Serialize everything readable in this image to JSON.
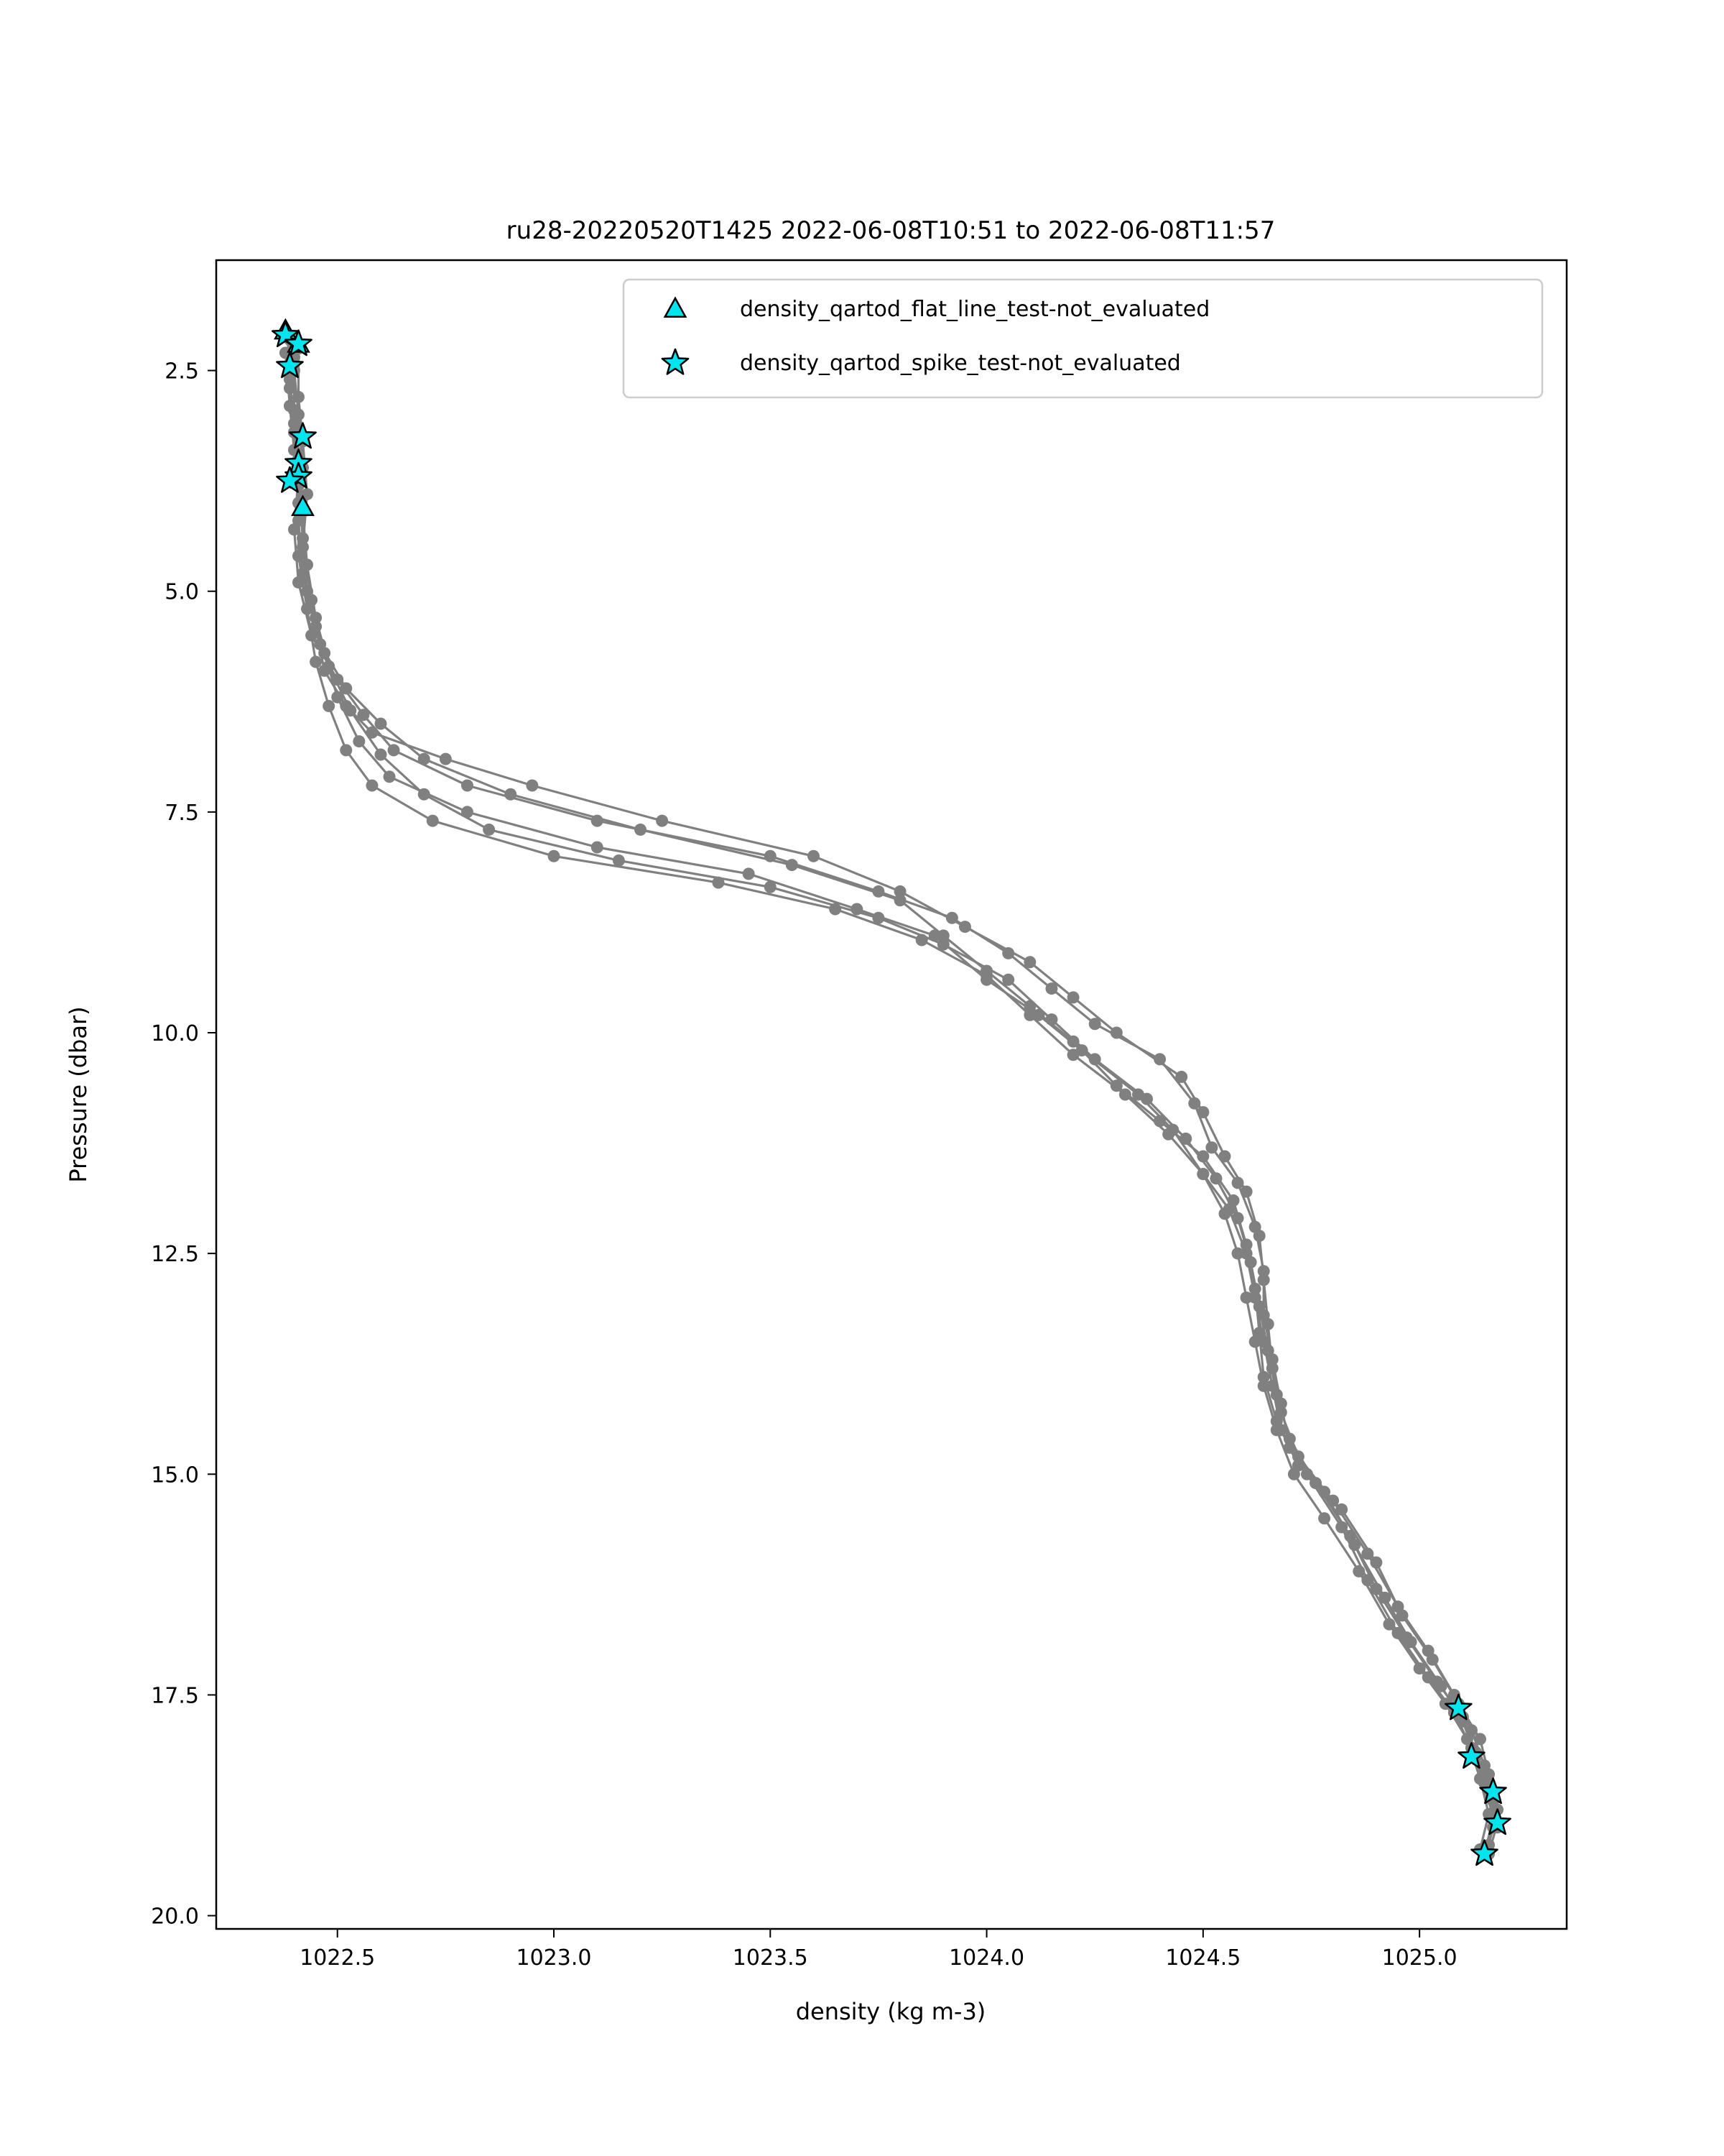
{
  "chart_data": {
    "type": "scatter",
    "title": "ru28-20220520T1425 2022-06-08T10:51 to 2022-06-08T11:57",
    "xlabel": "density (kg m-3)",
    "ylabel": "Pressure (dbar)",
    "xlim": [
      1022.22,
      1025.34
    ],
    "ylim": [
      20.15,
      1.25
    ],
    "y_inverted": true,
    "xticks": [
      1022.5,
      1023.0,
      1023.5,
      1024.0,
      1024.5,
      1025.0
    ],
    "xtick_labels": [
      "1022.5",
      "1023.0",
      "1023.5",
      "1024.0",
      "1024.5",
      "1025.0"
    ],
    "yticks": [
      2.5,
      5.0,
      7.5,
      10.0,
      12.5,
      15.0,
      17.5,
      20.0
    ],
    "ytick_labels": [
      "2.5",
      "5.0",
      "7.5",
      "10.0",
      "12.5",
      "15.0",
      "17.5",
      "20.0"
    ],
    "grid": false,
    "legend_position": "top-right",
    "colors": {
      "profile": "#808080",
      "marker_fill": "#00e5ee",
      "marker_edge": "#000000"
    },
    "profiles": [
      {
        "points": [
          [
            1022.38,
            2.1
          ],
          [
            1022.4,
            2.5
          ],
          [
            1022.41,
            3.0
          ],
          [
            1022.42,
            3.6
          ],
          [
            1022.41,
            4.2
          ],
          [
            1022.42,
            4.8
          ],
          [
            1022.45,
            5.4
          ],
          [
            1022.47,
            5.9
          ],
          [
            1022.52,
            6.3
          ],
          [
            1022.58,
            6.6
          ],
          [
            1022.75,
            6.9
          ],
          [
            1022.95,
            7.2
          ],
          [
            1023.25,
            7.6
          ],
          [
            1023.6,
            8.0
          ],
          [
            1023.8,
            8.4
          ],
          [
            1023.95,
            8.8
          ],
          [
            1024.1,
            9.2
          ],
          [
            1024.2,
            9.6
          ],
          [
            1024.3,
            10.0
          ],
          [
            1024.45,
            10.5
          ],
          [
            1024.5,
            10.9
          ],
          [
            1024.55,
            11.4
          ],
          [
            1024.6,
            11.8
          ],
          [
            1024.63,
            12.3
          ],
          [
            1024.64,
            12.8
          ],
          [
            1024.65,
            13.3
          ],
          [
            1024.66,
            13.8
          ],
          [
            1024.68,
            14.3
          ],
          [
            1024.72,
            14.8
          ],
          [
            1024.8,
            15.3
          ],
          [
            1024.88,
            15.9
          ],
          [
            1024.95,
            16.5
          ],
          [
            1025.02,
            17.0
          ],
          [
            1025.08,
            17.5
          ],
          [
            1025.12,
            17.9
          ],
          [
            1025.15,
            18.3
          ],
          [
            1025.17,
            18.7
          ],
          [
            1025.18,
            19.0
          ]
        ]
      },
      {
        "points": [
          [
            1022.39,
            2.15
          ],
          [
            1022.39,
            2.6
          ],
          [
            1022.4,
            3.1
          ],
          [
            1022.41,
            3.7
          ],
          [
            1022.4,
            4.3
          ],
          [
            1022.41,
            4.9
          ],
          [
            1022.44,
            5.5
          ],
          [
            1022.5,
            6.0
          ],
          [
            1022.56,
            6.4
          ],
          [
            1022.63,
            6.8
          ],
          [
            1022.8,
            7.2
          ],
          [
            1023.1,
            7.6
          ],
          [
            1023.5,
            8.0
          ],
          [
            1023.75,
            8.4
          ],
          [
            1023.92,
            8.7
          ],
          [
            1024.05,
            9.1
          ],
          [
            1024.15,
            9.5
          ],
          [
            1024.25,
            9.9
          ],
          [
            1024.4,
            10.3
          ],
          [
            1024.48,
            10.8
          ],
          [
            1024.52,
            11.3
          ],
          [
            1024.58,
            11.7
          ],
          [
            1024.62,
            12.2
          ],
          [
            1024.64,
            12.7
          ],
          [
            1024.64,
            13.2
          ],
          [
            1024.66,
            13.7
          ],
          [
            1024.68,
            14.2
          ],
          [
            1024.7,
            14.7
          ],
          [
            1024.78,
            15.2
          ],
          [
            1024.85,
            15.8
          ],
          [
            1024.92,
            16.4
          ],
          [
            1024.98,
            16.9
          ],
          [
            1025.05,
            17.4
          ],
          [
            1025.1,
            17.8
          ],
          [
            1025.13,
            18.2
          ],
          [
            1025.16,
            18.6
          ],
          [
            1025.17,
            19.0
          ]
        ]
      },
      {
        "points": [
          [
            1022.4,
            2.2
          ],
          [
            1022.39,
            2.7
          ],
          [
            1022.4,
            3.2
          ],
          [
            1022.41,
            3.8
          ],
          [
            1022.42,
            4.4
          ],
          [
            1022.43,
            5.0
          ],
          [
            1022.46,
            5.6
          ],
          [
            1022.52,
            6.1
          ],
          [
            1022.6,
            6.5
          ],
          [
            1022.7,
            6.9
          ],
          [
            1022.9,
            7.3
          ],
          [
            1023.2,
            7.7
          ],
          [
            1023.55,
            8.1
          ],
          [
            1023.8,
            8.5
          ],
          [
            1023.9,
            8.9
          ],
          [
            1024.0,
            9.3
          ],
          [
            1024.1,
            9.7
          ],
          [
            1024.2,
            10.1
          ],
          [
            1024.3,
            10.6
          ],
          [
            1024.4,
            11.0
          ],
          [
            1024.5,
            11.4
          ],
          [
            1024.57,
            11.9
          ],
          [
            1024.6,
            12.4
          ],
          [
            1024.62,
            12.9
          ],
          [
            1024.63,
            13.4
          ],
          [
            1024.64,
            13.9
          ],
          [
            1024.67,
            14.4
          ],
          [
            1024.72,
            14.9
          ],
          [
            1024.82,
            15.4
          ],
          [
            1024.9,
            16.0
          ],
          [
            1024.96,
            16.6
          ],
          [
            1025.03,
            17.1
          ],
          [
            1025.09,
            17.6
          ],
          [
            1025.14,
            18.0
          ],
          [
            1025.16,
            18.4
          ],
          [
            1025.18,
            18.8
          ],
          [
            1025.16,
            19.2
          ]
        ]
      },
      {
        "points": [
          [
            1022.41,
            2.25
          ],
          [
            1022.41,
            2.8
          ],
          [
            1022.42,
            3.3
          ],
          [
            1022.43,
            3.9
          ],
          [
            1022.42,
            4.5
          ],
          [
            1022.44,
            5.1
          ],
          [
            1022.47,
            5.7
          ],
          [
            1022.5,
            6.2
          ],
          [
            1022.55,
            6.7
          ],
          [
            1022.62,
            7.1
          ],
          [
            1022.8,
            7.5
          ],
          [
            1023.1,
            7.9
          ],
          [
            1023.45,
            8.2
          ],
          [
            1023.7,
            8.6
          ],
          [
            1023.88,
            8.9
          ],
          [
            1024.0,
            9.4
          ],
          [
            1024.12,
            9.8
          ],
          [
            1024.22,
            10.2
          ],
          [
            1024.35,
            10.7
          ],
          [
            1024.43,
            11.1
          ],
          [
            1024.5,
            11.6
          ],
          [
            1024.56,
            12.0
          ],
          [
            1024.6,
            12.5
          ],
          [
            1024.62,
            13.0
          ],
          [
            1024.64,
            13.5
          ],
          [
            1024.66,
            14.0
          ],
          [
            1024.68,
            14.5
          ],
          [
            1024.74,
            15.0
          ],
          [
            1024.82,
            15.6
          ],
          [
            1024.88,
            16.2
          ],
          [
            1024.95,
            16.8
          ],
          [
            1025.02,
            17.3
          ],
          [
            1025.08,
            17.7
          ],
          [
            1025.12,
            18.1
          ],
          [
            1025.15,
            18.5
          ],
          [
            1025.17,
            18.9
          ],
          [
            1025.15,
            19.3
          ]
        ]
      },
      {
        "points": [
          [
            1022.38,
            2.3
          ],
          [
            1022.39,
            2.9
          ],
          [
            1022.4,
            3.4
          ],
          [
            1022.41,
            4.0
          ],
          [
            1022.41,
            4.6
          ],
          [
            1022.43,
            5.2
          ],
          [
            1022.45,
            5.8
          ],
          [
            1022.48,
            6.3
          ],
          [
            1022.52,
            6.8
          ],
          [
            1022.58,
            7.2
          ],
          [
            1022.72,
            7.6
          ],
          [
            1023.0,
            8.0
          ],
          [
            1023.38,
            8.3
          ],
          [
            1023.65,
            8.6
          ],
          [
            1023.85,
            8.95
          ],
          [
            1024.0,
            9.35
          ],
          [
            1024.1,
            9.8
          ],
          [
            1024.2,
            10.25
          ],
          [
            1024.32,
            10.7
          ],
          [
            1024.42,
            11.15
          ],
          [
            1024.5,
            11.6
          ],
          [
            1024.55,
            12.05
          ],
          [
            1024.58,
            12.5
          ],
          [
            1024.6,
            13.0
          ],
          [
            1024.62,
            13.5
          ],
          [
            1024.64,
            14.0
          ],
          [
            1024.67,
            14.5
          ],
          [
            1024.71,
            15.0
          ],
          [
            1024.78,
            15.5
          ],
          [
            1024.86,
            16.1
          ],
          [
            1024.93,
            16.7
          ],
          [
            1025.0,
            17.2
          ],
          [
            1025.06,
            17.6
          ],
          [
            1025.11,
            18.0
          ],
          [
            1025.14,
            18.45
          ],
          [
            1025.16,
            18.85
          ],
          [
            1025.14,
            19.25
          ]
        ]
      },
      {
        "points": [
          [
            1022.4,
            2.35
          ],
          [
            1022.4,
            2.95
          ],
          [
            1022.41,
            3.5
          ],
          [
            1022.42,
            4.1
          ],
          [
            1022.43,
            4.7
          ],
          [
            1022.45,
            5.3
          ],
          [
            1022.48,
            5.85
          ],
          [
            1022.53,
            6.35
          ],
          [
            1022.6,
            6.85
          ],
          [
            1022.7,
            7.3
          ],
          [
            1022.85,
            7.7
          ],
          [
            1023.15,
            8.05
          ],
          [
            1023.5,
            8.35
          ],
          [
            1023.75,
            8.7
          ],
          [
            1023.9,
            9.0
          ],
          [
            1024.05,
            9.4
          ],
          [
            1024.15,
            9.85
          ],
          [
            1024.25,
            10.3
          ],
          [
            1024.37,
            10.75
          ],
          [
            1024.46,
            11.2
          ],
          [
            1024.53,
            11.65
          ],
          [
            1024.58,
            12.1
          ],
          [
            1024.61,
            12.6
          ],
          [
            1024.63,
            13.1
          ],
          [
            1024.65,
            13.6
          ],
          [
            1024.67,
            14.1
          ],
          [
            1024.7,
            14.6
          ],
          [
            1024.76,
            15.1
          ],
          [
            1024.84,
            15.7
          ],
          [
            1024.9,
            16.3
          ],
          [
            1024.97,
            16.85
          ],
          [
            1025.04,
            17.35
          ],
          [
            1025.1,
            17.75
          ],
          [
            1025.13,
            18.15
          ],
          [
            1025.16,
            18.55
          ],
          [
            1025.18,
            18.95
          ],
          [
            1025.16,
            19.3
          ]
        ]
      }
    ],
    "series": [
      {
        "name": "density_qartod_flat_line_test-not_evaluated",
        "marker": "triangle",
        "points": [
          [
            1022.38,
            2.05
          ],
          [
            1022.41,
            2.2
          ],
          [
            1022.42,
            4.05
          ]
        ]
      },
      {
        "name": "density_qartod_spike_test-not_evaluated",
        "marker": "star",
        "points": [
          [
            1022.38,
            2.1
          ],
          [
            1022.41,
            2.2
          ],
          [
            1022.39,
            2.45
          ],
          [
            1022.42,
            3.25
          ],
          [
            1022.41,
            3.55
          ],
          [
            1022.41,
            3.7
          ],
          [
            1022.39,
            3.75
          ],
          [
            1025.09,
            17.65
          ],
          [
            1025.12,
            18.2
          ],
          [
            1025.17,
            18.6
          ],
          [
            1025.18,
            18.95
          ],
          [
            1025.15,
            19.3
          ]
        ]
      }
    ]
  }
}
